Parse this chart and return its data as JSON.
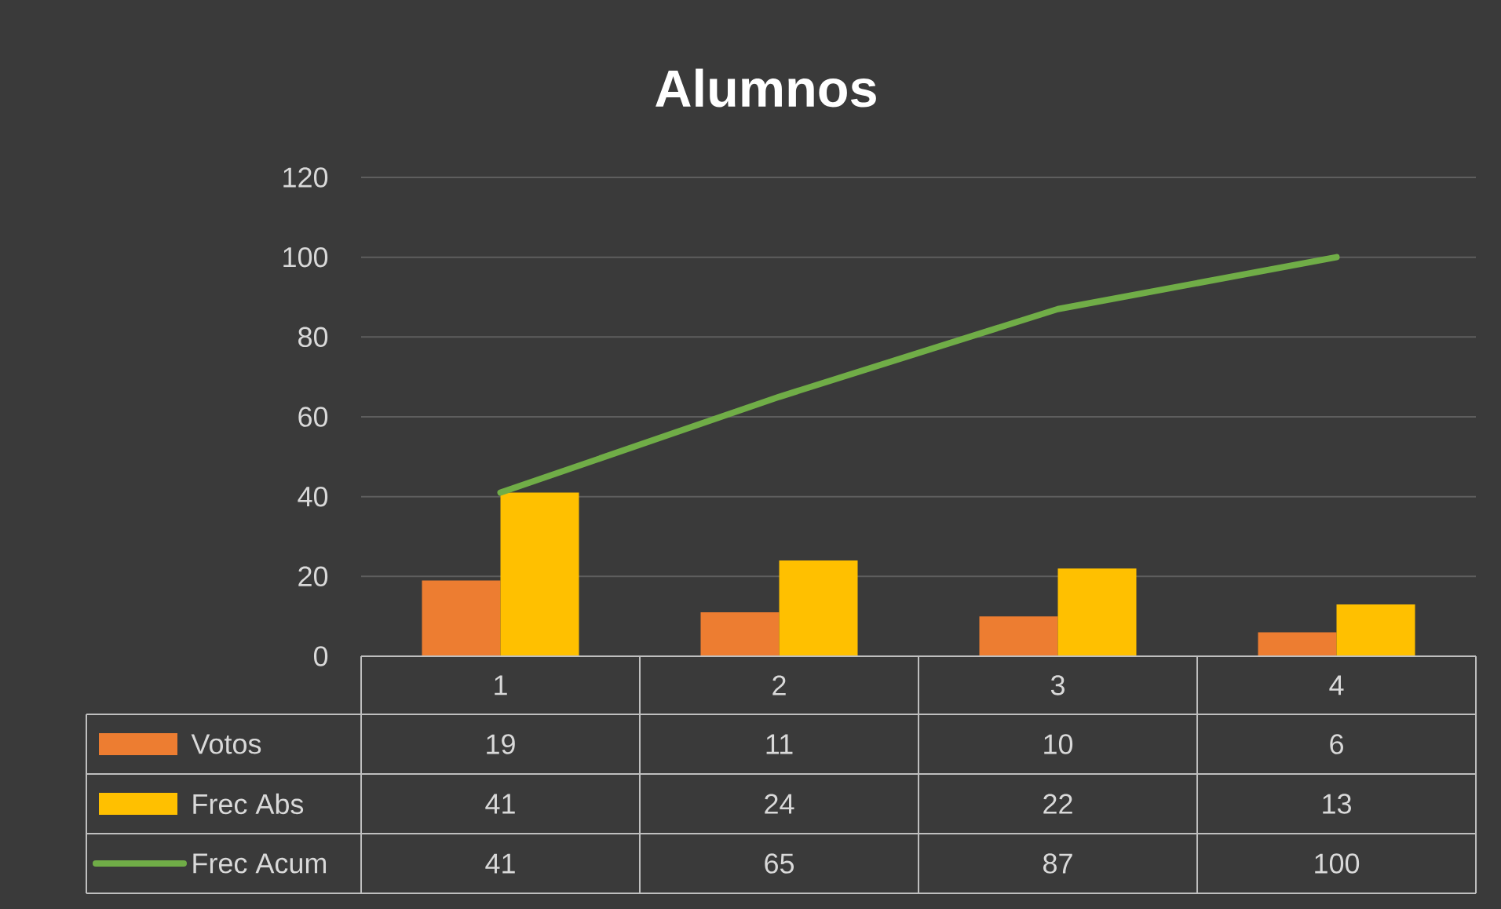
{
  "chart_data": {
    "type": "bar",
    "title": "Alumnos",
    "categories": [
      "1",
      "2",
      "3",
      "4"
    ],
    "series": [
      {
        "name": "Votos",
        "color": "#ed7d31",
        "values": [
          19,
          11,
          10,
          6
        ]
      },
      {
        "name": "Frec Abs",
        "color": "#ffc000",
        "values": [
          41,
          24,
          22,
          13
        ]
      },
      {
        "name": "Frec Acum",
        "color": "#70ad47",
        "type": "line",
        "values": [
          41,
          65,
          87,
          100
        ]
      }
    ],
    "ylim": [
      0,
      120
    ],
    "yticks": [
      0,
      20,
      40,
      60,
      80,
      100,
      120
    ],
    "grid": "y",
    "legend": "bottom",
    "data_labels": true,
    "marker": "none",
    "line_style": "solid"
  }
}
